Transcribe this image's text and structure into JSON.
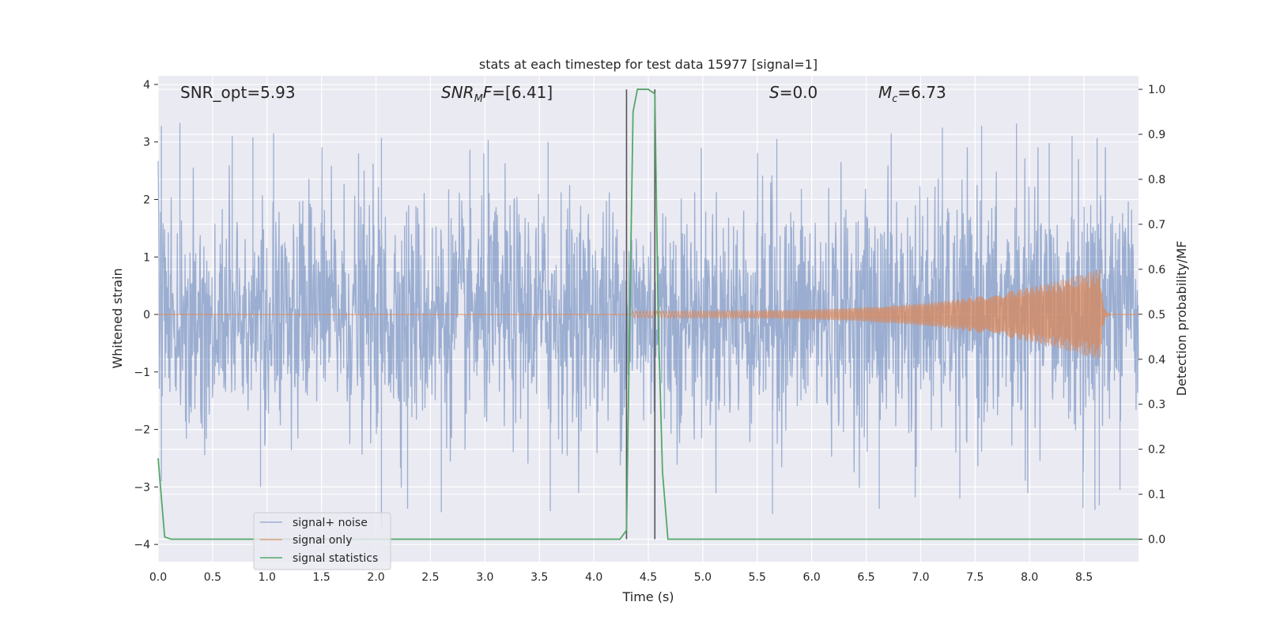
{
  "chart_data": {
    "type": "line",
    "title": "stats at each timestep for test data 15977 [signal=1]",
    "xlabel": "Time (s)",
    "ylabel": "Whitened strain",
    "ylabel_right": "Detection probability/MF",
    "xlim": [
      0.0,
      9.0
    ],
    "ylim": [
      -4.3,
      4.15
    ],
    "ylim_right": [
      -0.05,
      1.03
    ],
    "x_ticks": [
      0.0,
      0.5,
      1.0,
      1.5,
      2.0,
      2.5,
      3.0,
      3.5,
      4.0,
      4.5,
      5.0,
      5.5,
      6.0,
      6.5,
      7.0,
      7.5,
      8.0,
      8.5
    ],
    "x_tick_labels": [
      "0.0",
      "0.5",
      "1.0",
      "1.5",
      "2.0",
      "2.5",
      "3.0",
      "3.5",
      "4.0",
      "4.5",
      "5.0",
      "5.5",
      "6.0",
      "6.5",
      "7.0",
      "7.5",
      "8.0",
      "8.5"
    ],
    "y_ticks": [
      4,
      3,
      2,
      1,
      0,
      -1,
      -2,
      -3,
      -4
    ],
    "y_tick_labels": [
      "4",
      "3",
      "2",
      "1",
      "0",
      "−1",
      "−2",
      "−3",
      "−4"
    ],
    "y_right_ticks": [
      1.0,
      0.9,
      0.8,
      0.7,
      0.6,
      0.5,
      0.4,
      0.3,
      0.2,
      0.1,
      0.0
    ],
    "y_right_tick_labels": [
      "1.0",
      "0.9",
      "0.8",
      "0.7",
      "0.6",
      "0.5",
      "0.4",
      "0.3",
      "0.2",
      "0.1",
      "0.0"
    ],
    "grid": true,
    "legend_position": "lower-left",
    "annotations": [
      {
        "text": "SNR_opt=5.93"
      },
      {
        "text": "SNR",
        "sub": "M",
        "tail": "F=[6.41]"
      },
      {
        "text": "S",
        "sub": "",
        "tail": "=0.0"
      },
      {
        "text": "M",
        "sub": "c",
        "tail": "=6.73"
      }
    ],
    "vertical_markers": [
      4.3,
      4.56
    ],
    "series": [
      {
        "name": "signal+ noise",
        "color": "#4c72b0",
        "opacity": 0.5,
        "envelope": {
          "sigma": 1.0,
          "peaks_x": [
            0.03,
            0.2,
            0.68,
            0.87,
            1.06,
            1.84,
            2.05,
            3.03,
            3.58,
            5.68,
            6.73,
            7.2,
            7.56,
            7.88,
            8.18,
            8.39,
            8.62
          ],
          "peaks_y": [
            3.28,
            3.33,
            3.1,
            3.08,
            3.15,
            2.8,
            3.07,
            3.03,
            3.0,
            3.05,
            3.15,
            3.25,
            3.28,
            3.32,
            2.98,
            3.1,
            3.07
          ],
          "troughs_x": [
            0.03,
            0.94,
            2.05,
            2.29,
            2.6,
            3.6,
            5.64,
            6.62,
            6.95,
            7.36,
            8.49,
            8.6,
            8.64,
            8.83
          ],
          "troughs_y": [
            -2.9,
            -3.0,
            -3.7,
            -3.38,
            -3.44,
            -3.42,
            -3.47,
            -3.38,
            -3.18,
            -3.2,
            -3.37,
            -3.4,
            -3.32,
            -3.05
          ]
        }
      },
      {
        "name": "signal only",
        "color": "#dd8452",
        "opacity": 0.7,
        "chirp": {
          "start": 4.35,
          "merger": 8.65,
          "ringdown_end": 8.75,
          "peak_amplitude": 0.8
        }
      },
      {
        "name": "signal statistics",
        "color": "#55a868",
        "axis": "right",
        "x": [
          0.0,
          0.06,
          0.12,
          0.5,
          1.0,
          2.0,
          3.0,
          4.0,
          4.24,
          4.3,
          4.33,
          4.36,
          4.4,
          4.5,
          4.56,
          4.59,
          4.63,
          4.68,
          4.75,
          5.5,
          6.5,
          7.5,
          8.5,
          9.0
        ],
        "y": [
          0.18,
          0.005,
          0.0,
          0.0,
          0.0,
          0.0,
          0.0,
          0.0,
          0.0,
          0.02,
          0.5,
          0.95,
          1.0,
          1.0,
          0.99,
          0.5,
          0.15,
          0.0,
          0.0,
          0.0,
          0.0,
          0.0,
          0.0,
          0.0
        ]
      }
    ]
  }
}
